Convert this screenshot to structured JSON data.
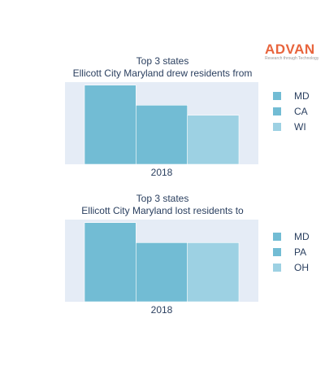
{
  "logo": {
    "name": "ADVAN",
    "tagline": "Research through Technology"
  },
  "chart_data": [
    {
      "type": "bar",
      "title": "Top 3 states",
      "subtitle": "Ellicott City Maryland drew residents from",
      "categories": [
        "2018"
      ],
      "series": [
        {
          "name": "MD",
          "values": [
            79
          ],
          "color": "#72bcd4"
        },
        {
          "name": "CA",
          "values": [
            59
          ],
          "color": "#72bcd4"
        },
        {
          "name": "WI",
          "values": [
            49
          ],
          "color": "#9dd1e3"
        }
      ],
      "ylim": [
        0,
        82
      ],
      "grid": false,
      "legend": "right"
    },
    {
      "type": "bar",
      "title": "Top 3 states",
      "subtitle": "Ellicott City Maryland lost residents to",
      "categories": [
        "2018"
      ],
      "series": [
        {
          "name": "MD",
          "values": [
            79
          ],
          "color": "#72bcd4"
        },
        {
          "name": "PA",
          "values": [
            59
          ],
          "color": "#72bcd4"
        },
        {
          "name": "OH",
          "values": [
            59
          ],
          "color": "#9dd1e3"
        }
      ],
      "ylim": [
        0,
        82
      ],
      "grid": false,
      "legend": "right"
    }
  ]
}
